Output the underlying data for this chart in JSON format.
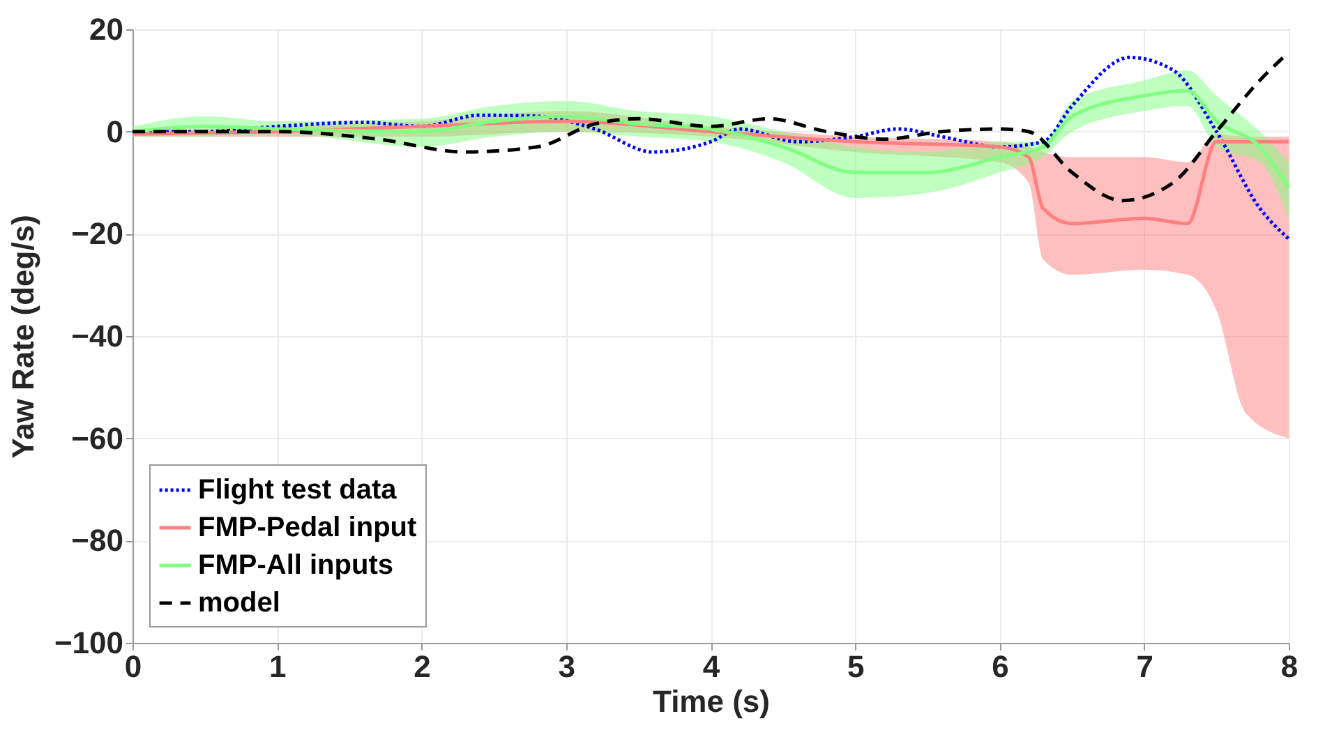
{
  "chart_data": {
    "type": "line",
    "xlabel": "Time (s)",
    "ylabel": "Yaw Rate (deg/s)",
    "xlim": [
      0,
      8
    ],
    "ylim": [
      -100,
      20
    ],
    "xticks": [
      0,
      1,
      2,
      3,
      4,
      5,
      6,
      7,
      8
    ],
    "yticks": [
      -100,
      -80,
      -60,
      -40,
      -20,
      0,
      20
    ],
    "grid": true,
    "legend": "bottom left",
    "series": [
      {
        "name": "Flight test data",
        "color": "#0000ff",
        "line_style": "dotted",
        "x": [
          0,
          0.5,
          1,
          1.6,
          2,
          2.4,
          2.8,
          3.2,
          3.6,
          4,
          4.2,
          4.6,
          5,
          5.3,
          5.6,
          6,
          6.3,
          6.5,
          6.9,
          7.2,
          7.5,
          7.8,
          8
        ],
        "values": [
          0,
          0,
          1,
          1.8,
          1,
          3.2,
          3,
          0.5,
          -4,
          -2,
          0.5,
          -2,
          -1,
          0.5,
          -1,
          -3,
          -2,
          5,
          14.5,
          12,
          0,
          -15,
          -21
        ]
      },
      {
        "name": "FMP-Pedal input",
        "color": "#ff8080",
        "line_style": "solid",
        "x": [
          0,
          1,
          2,
          3,
          4,
          5,
          6,
          6.2,
          6.3,
          6.5,
          7,
          7.3,
          7.5,
          7.7,
          8
        ],
        "values": [
          -0.5,
          0,
          1,
          2,
          0,
          -2,
          -3,
          -5,
          -15,
          -18,
          -17,
          -18,
          -2,
          -2,
          -2
        ],
        "lower": [
          -1,
          -1,
          -1,
          0,
          -1,
          -4,
          -6,
          -10,
          -25,
          -28,
          -27,
          -28,
          -35,
          -55,
          -60
        ],
        "upper": [
          0,
          1,
          2,
          4,
          1,
          -1,
          -2,
          -3,
          -4,
          -5,
          -5,
          -6,
          -0.5,
          -1,
          -1
        ]
      },
      {
        "name": "FMP-All inputs",
        "color": "#80ff80",
        "line_style": "solid",
        "x": [
          0,
          0.5,
          1,
          2,
          2.5,
          3,
          3.5,
          4,
          4.5,
          5,
          5.5,
          6,
          6.3,
          6.5,
          7,
          7.3,
          7.5,
          7.8,
          8
        ],
        "values": [
          0,
          1,
          0.5,
          0,
          2,
          3,
          1.5,
          0.5,
          -3,
          -8,
          -8,
          -5,
          -3,
          3,
          7,
          8,
          2,
          -3,
          -11
        ],
        "lower": [
          -1,
          -1,
          -0.5,
          -3,
          -1,
          0,
          -1,
          -2,
          -6,
          -13,
          -12,
          -8,
          -5,
          0,
          4,
          5,
          -3,
          -6,
          -17
        ],
        "upper": [
          1,
          3,
          2,
          2.5,
          5,
          6,
          4,
          3,
          0,
          -3,
          -4,
          -2,
          -2,
          6,
          10,
          12,
          7,
          0,
          -6
        ]
      },
      {
        "name": "model",
        "color": "#000000",
        "line_style": "dashed",
        "x": [
          0,
          1,
          1.7,
          2.3,
          2.8,
          3.2,
          3.5,
          4,
          4.4,
          4.8,
          5.2,
          5.6,
          6,
          6.2,
          6.5,
          6.85,
          7.2,
          7.5,
          7.8,
          8
        ],
        "values": [
          0,
          0,
          -1.5,
          -4,
          -3,
          1.5,
          2.5,
          1,
          2.5,
          0,
          -1.5,
          0,
          0.5,
          0,
          -8,
          -13.5,
          -10,
          0,
          10,
          15.5
        ]
      }
    ]
  }
}
